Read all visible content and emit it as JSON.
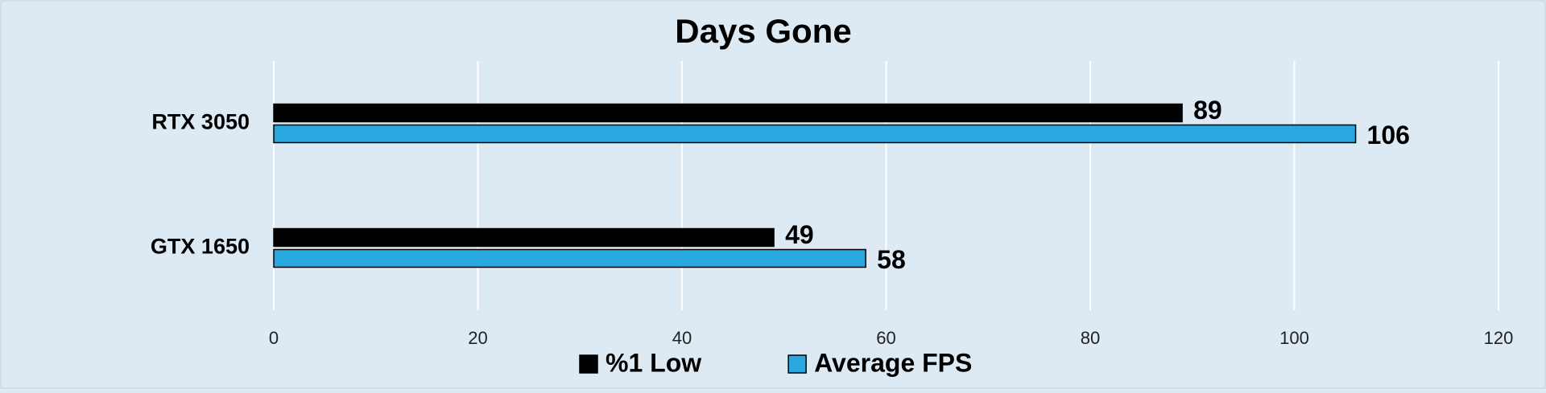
{
  "chart_data": {
    "type": "hbar",
    "title": "Days Gone",
    "categories": [
      "RTX 3050",
      "GTX 1650"
    ],
    "series": [
      {
        "name": "%1 Low",
        "color": "#000000",
        "values": [
          89,
          49
        ]
      },
      {
        "name": "Average FPS",
        "color": "#29a8e0",
        "values": [
          106,
          58
        ]
      }
    ],
    "xlim": [
      0,
      120
    ],
    "xticks": [
      0,
      20,
      40,
      60,
      80,
      100,
      120
    ],
    "grid": true,
    "legend": "bottom"
  }
}
